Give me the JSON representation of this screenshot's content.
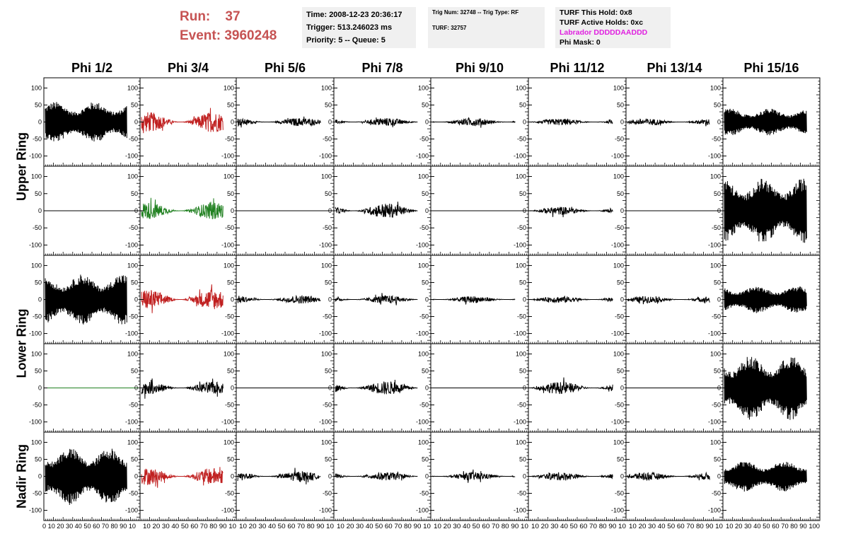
{
  "header": {
    "run_label": "Run:",
    "run_value": "37",
    "event_label": "Event:",
    "event_value": "3960248",
    "time": "Time: 2008-12-23 20:36:17",
    "trigger": "Trigger: 513.246023 ms",
    "priority": "Priority: 5 -- Queue: 5",
    "trig_num": "Trig Num: 32748 -- Trig Type: RF",
    "turf": "TURF: 32757",
    "turf_this_hold": "TURF This Hold: 0x8",
    "turf_active_holds": "TURF Active Holds: 0xc",
    "labrador": "Labrador DDDDDAADDD",
    "phi_mask": "Phi Mask: 0"
  },
  "columns": [
    "Phi 1/2",
    "Phi 3/4",
    "Phi 5/6",
    "Phi 7/8",
    "Phi 9/10",
    "Phi 11/12",
    "Phi 13/14",
    "Phi 15/16"
  ],
  "ring_labels": [
    "Upper Ring",
    "Lower Ring",
    "Nadir Ring"
  ],
  "colors": {
    "black": "#000000",
    "red": "#c02020",
    "green": "#208020",
    "header_red": "#c65353",
    "magenta": "#e020e0"
  },
  "chart_data": {
    "type": "line",
    "xlim": [
      0,
      100
    ],
    "ylim": [
      -130,
      130
    ],
    "x_ticks": [
      0,
      10,
      20,
      30,
      40,
      50,
      60,
      70,
      80,
      90,
      100
    ],
    "y_ticks": [
      -100,
      -50,
      0,
      50,
      100
    ],
    "x_tick_labels_first": "0 10 20 30 40 50 60 70 80 90 10",
    "x_tick_labels": "10 20 30 40 50 60 70 80 90 10",
    "x_tick_labels_last": "10 20 30 40 50 60 70 80 90 100",
    "row_ring_index": [
      0,
      0,
      1,
      1,
      2
    ],
    "panels": [
      [
        {
          "amplitude": 60,
          "color": "black",
          "type": "osc"
        },
        {
          "amplitude": 30,
          "color": "red",
          "type": "noise"
        },
        {
          "amplitude": 12,
          "color": "black",
          "type": "noise"
        },
        {
          "amplitude": 12,
          "color": "black",
          "type": "noise"
        },
        {
          "amplitude": 12,
          "color": "black",
          "type": "noise"
        },
        {
          "amplitude": 10,
          "color": "black",
          "type": "noise"
        },
        {
          "amplitude": 10,
          "color": "black",
          "type": "noise"
        },
        {
          "amplitude": 40,
          "color": "black",
          "type": "osc"
        }
      ],
      [
        {
          "amplitude": 0,
          "color": "black",
          "type": "flat"
        },
        {
          "amplitude": 25,
          "color": "green",
          "type": "noise"
        },
        {
          "amplitude": 0,
          "color": "black",
          "type": "flat"
        },
        {
          "amplitude": 22,
          "color": "black",
          "type": "noise"
        },
        {
          "amplitude": 0,
          "color": "black",
          "type": "flat"
        },
        {
          "amplitude": 12,
          "color": "black",
          "type": "noise"
        },
        {
          "amplitude": 0,
          "color": "black",
          "type": "flat"
        },
        {
          "amplitude": 95,
          "color": "black",
          "type": "osc"
        }
      ],
      [
        {
          "amplitude": 75,
          "color": "black",
          "type": "osc"
        },
        {
          "amplitude": 30,
          "color": "red",
          "type": "noise"
        },
        {
          "amplitude": 12,
          "color": "black",
          "type": "noise"
        },
        {
          "amplitude": 12,
          "color": "black",
          "type": "noise"
        },
        {
          "amplitude": 10,
          "color": "black",
          "type": "noise"
        },
        {
          "amplitude": 10,
          "color": "black",
          "type": "noise"
        },
        {
          "amplitude": 10,
          "color": "black",
          "type": "noise"
        },
        {
          "amplitude": 40,
          "color": "black",
          "type": "osc"
        }
      ],
      [
        {
          "amplitude": 0,
          "color": "green",
          "type": "flat"
        },
        {
          "amplitude": 18,
          "color": "black",
          "type": "noise"
        },
        {
          "amplitude": 0,
          "color": "black",
          "type": "flat"
        },
        {
          "amplitude": 20,
          "color": "black",
          "type": "noise"
        },
        {
          "amplitude": 0,
          "color": "black",
          "type": "flat"
        },
        {
          "amplitude": 18,
          "color": "black",
          "type": "noise"
        },
        {
          "amplitude": 0,
          "color": "black",
          "type": "flat"
        },
        {
          "amplitude": 95,
          "color": "black",
          "type": "osc"
        }
      ],
      [
        {
          "amplitude": 85,
          "color": "black",
          "type": "osc"
        },
        {
          "amplitude": 25,
          "color": "red",
          "type": "noise"
        },
        {
          "amplitude": 15,
          "color": "black",
          "type": "noise"
        },
        {
          "amplitude": 12,
          "color": "black",
          "type": "noise"
        },
        {
          "amplitude": 12,
          "color": "black",
          "type": "noise"
        },
        {
          "amplitude": 12,
          "color": "black",
          "type": "noise"
        },
        {
          "amplitude": 12,
          "color": "black",
          "type": "noise"
        },
        {
          "amplitude": 45,
          "color": "black",
          "type": "osc"
        }
      ]
    ]
  }
}
